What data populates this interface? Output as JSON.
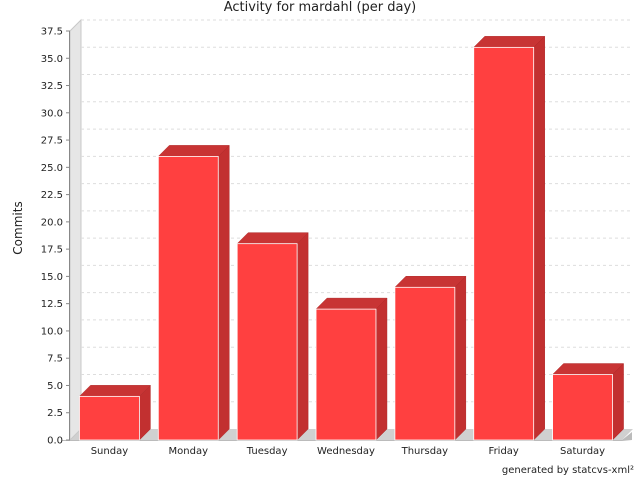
{
  "chart_data": {
    "type": "bar",
    "title": "Activity for mardahl (per day)",
    "ylabel": "Commits",
    "xlabel": "",
    "categories": [
      "Sunday",
      "Monday",
      "Tuesday",
      "Wednesday",
      "Thursday",
      "Friday",
      "Saturday"
    ],
    "values": [
      4,
      26,
      18,
      12,
      14,
      36,
      6
    ],
    "ylim": [
      0,
      37.5
    ],
    "yticks": [
      "0.0",
      "2.5",
      "5.0",
      "7.5",
      "10.0",
      "12.5",
      "15.0",
      "17.5",
      "20.0",
      "22.5",
      "25.0",
      "27.5",
      "30.0",
      "32.5",
      "35.0",
      "37.5"
    ],
    "grid": true,
    "bar_color": "#ff4040"
  },
  "footer": {
    "credit": "generated by statcvs-xml²"
  }
}
